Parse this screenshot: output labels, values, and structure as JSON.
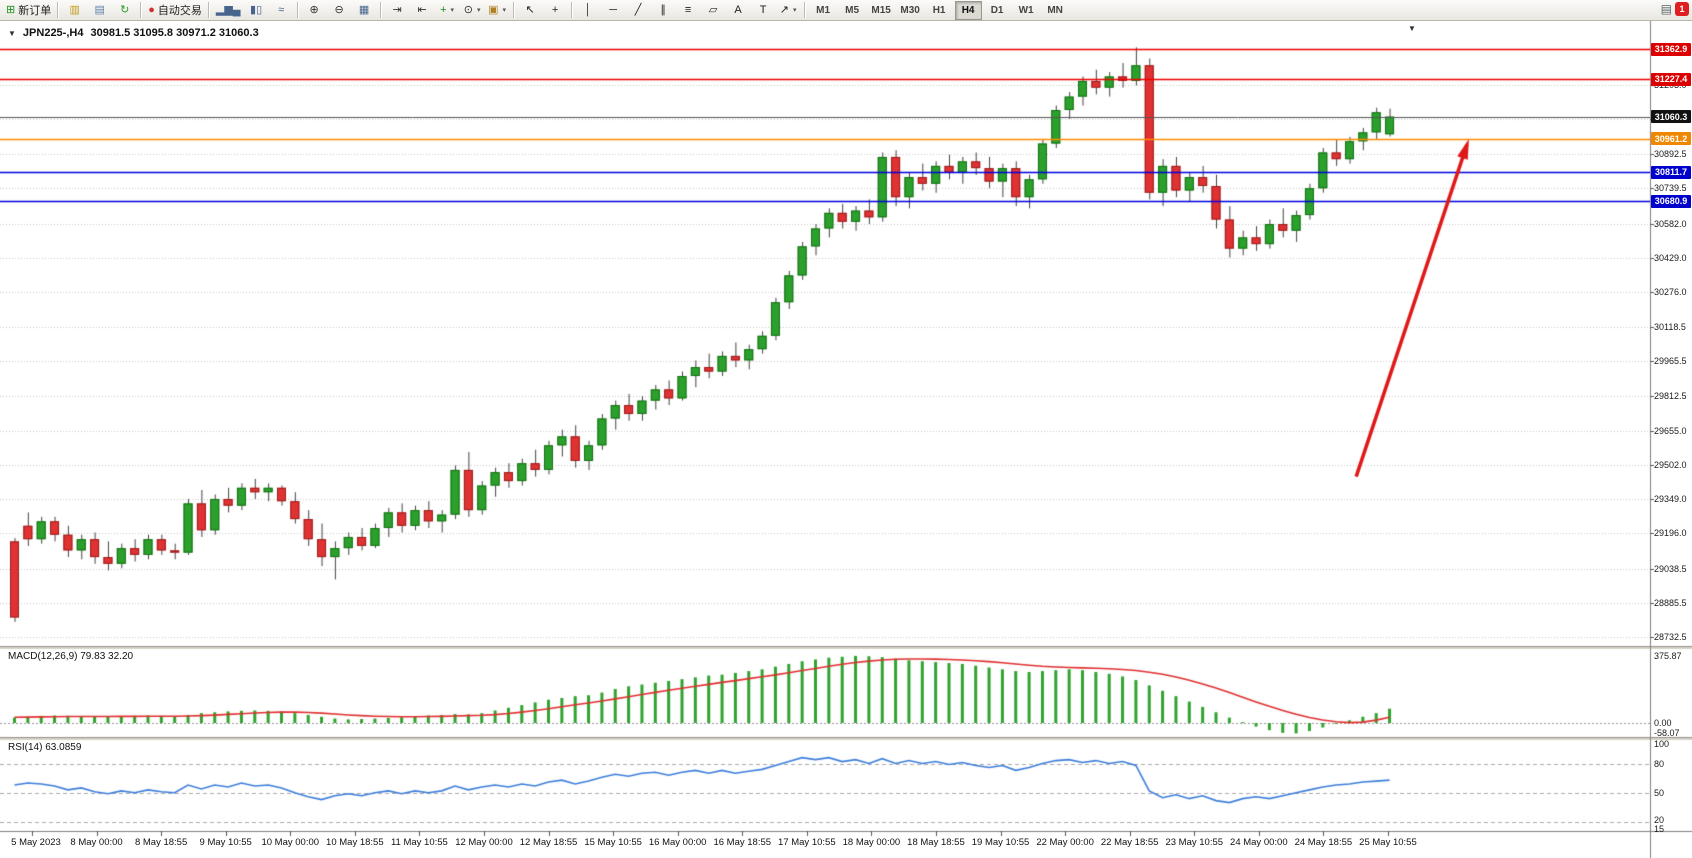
{
  "window": {
    "notification_count": "1"
  },
  "toolbar": {
    "buttons": [
      {
        "name": "new-order-button",
        "glyph": "⊞",
        "color": "#1f8f1f",
        "label": "新订单"
      },
      {
        "sep": true
      },
      {
        "name": "new-chart-button",
        "glyph": "▥",
        "color": "#c09a18"
      },
      {
        "name": "profiles-button",
        "glyph": "▤",
        "color": "#6080a8"
      },
      {
        "name": "refresh-button",
        "glyph": "↻",
        "color": "#2a9a2a"
      },
      {
        "sep": true
      },
      {
        "name": "autotrading-button",
        "glyph": "●",
        "color": "#d23030",
        "label": "自动交易"
      },
      {
        "sep": true
      },
      {
        "name": "bar-chart-button",
        "glyph": "▂▆▄",
        "color": "#46648c"
      },
      {
        "name": "candlestick-chart-button",
        "glyph": "▮▯",
        "color": "#46648c"
      },
      {
        "name": "line-chart-button",
        "glyph": "≈",
        "color": "#46648c"
      },
      {
        "sep": true
      },
      {
        "name": "zoom-in-button",
        "glyph": "⊕",
        "color": "#333333"
      },
      {
        "name": "zoom-out-button",
        "glyph": "⊖",
        "color": "#333333"
      },
      {
        "name": "tile-windows-button",
        "glyph": "▦",
        "color": "#46648c"
      },
      {
        "sep": true
      },
      {
        "name": "auto-scroll-button",
        "glyph": "⇥",
        "color": "#333333"
      },
      {
        "name": "chart-shift-button",
        "glyph": "⇤",
        "color": "#333333"
      },
      {
        "name": "indicators-button",
        "glyph": "+",
        "color": "#1f8f1f",
        "caret": true
      },
      {
        "name": "periods-button",
        "glyph": "⊙",
        "color": "#333333",
        "caret": true
      },
      {
        "name": "templates-button",
        "glyph": "▣",
        "color": "#b08020",
        "caret": true
      },
      {
        "sep": true
      },
      {
        "name": "cursor-button",
        "glyph": "↖",
        "color": "#222222"
      },
      {
        "name": "crosshair-button",
        "glyph": "+",
        "color": "#222222"
      },
      {
        "sep": true
      },
      {
        "name": "vertical-line-button",
        "glyph": "│",
        "color": "#222222"
      },
      {
        "name": "horizontal-line-button",
        "glyph": "─",
        "color": "#222222"
      },
      {
        "name": "trendline-button",
        "glyph": "╱",
        "color": "#222222"
      },
      {
        "name": "channel-button",
        "glyph": "∥",
        "color": "#222222"
      },
      {
        "name": "fibonacci-button",
        "glyph": "≡",
        "color": "#222222"
      },
      {
        "name": "shapes-button",
        "glyph": "▱",
        "color": "#222222"
      },
      {
        "name": "text-button",
        "glyph": "A",
        "color": "#222222"
      },
      {
        "name": "label-button",
        "glyph": "T",
        "color": "#222222"
      },
      {
        "name": "arrows-button",
        "glyph": "↗",
        "color": "#222222",
        "caret": true
      },
      {
        "sep": true
      }
    ],
    "timeframes": [
      {
        "label": "M1"
      },
      {
        "label": "M5"
      },
      {
        "label": "M15"
      },
      {
        "label": "M30"
      },
      {
        "label": "H1"
      },
      {
        "label": "H4",
        "active": true
      },
      {
        "label": "D1"
      },
      {
        "label": "W1"
      },
      {
        "label": "MN"
      }
    ]
  },
  "chart": {
    "title_symbol": "JPN225-,H4",
    "title_ohlc": "30981.5 31095.8 30971.2 31060.3"
  },
  "chart_data": {
    "type": "candlestick",
    "symbol": "JPN225-",
    "timeframe": "H4",
    "last_ohlc": {
      "open": 30981.5,
      "high": 31095.8,
      "low": 30971.2,
      "close": 31060.3
    },
    "price_axis": {
      "visible_min": 28692,
      "visible_max": 31488,
      "grid_labels": [
        "31203.0",
        "31050.0",
        "30892.5",
        "30739.5",
        "30582.0",
        "30429.0",
        "30276.0",
        "30118.5",
        "29965.5",
        "29812.5",
        "29655.0",
        "29502.0",
        "29349.0",
        "29196.0",
        "29038.5",
        "28885.5",
        "28732.5"
      ],
      "badges": [
        {
          "text": "31362.9",
          "price": 31362.9,
          "color": "#dd0000"
        },
        {
          "text": "31227.4",
          "price": 31227.4,
          "color": "#dd0000"
        },
        {
          "text": "31060.3",
          "price": 31060.3,
          "color": "#111111"
        },
        {
          "text": "30961.2",
          "price": 30961.2,
          "color": "#ef8800"
        },
        {
          "text": "30811.7",
          "price": 30811.7,
          "color": "#0000cc"
        },
        {
          "text": "30680.9",
          "price": 30680.9,
          "color": "#0000cc"
        }
      ]
    },
    "horizontal_lines": [
      {
        "price": 31362.9,
        "color": "#ee0000"
      },
      {
        "price": 31227.4,
        "color": "#ee0000"
      },
      {
        "price": 30961.2,
        "color": "#ff8a00"
      },
      {
        "price": 30811.7,
        "color": "#0000dd"
      },
      {
        "price": 30680.9,
        "color": "#0000dd"
      }
    ],
    "current_price": 31060.3,
    "candles": [
      [
        29160,
        29175,
        28800,
        28820
      ],
      [
        29230,
        29290,
        29140,
        29170
      ],
      [
        29170,
        29270,
        29150,
        29250
      ],
      [
        29250,
        29270,
        29160,
        29190
      ],
      [
        29190,
        29230,
        29090,
        29120
      ],
      [
        29120,
        29190,
        29080,
        29170
      ],
      [
        29170,
        29200,
        29060,
        29090
      ],
      [
        29090,
        29160,
        29030,
        29060
      ],
      [
        29060,
        29150,
        29040,
        29130
      ],
      [
        29130,
        29170,
        29070,
        29100
      ],
      [
        29100,
        29190,
        29080,
        29170
      ],
      [
        29170,
        29190,
        29100,
        29120
      ],
      [
        29120,
        29150,
        29080,
        29110
      ],
      [
        29110,
        29350,
        29100,
        29330
      ],
      [
        29330,
        29390,
        29180,
        29210
      ],
      [
        29210,
        29370,
        29190,
        29350
      ],
      [
        29350,
        29400,
        29290,
        29320
      ],
      [
        29320,
        29420,
        29300,
        29400
      ],
      [
        29400,
        29440,
        29350,
        29380
      ],
      [
        29380,
        29420,
        29340,
        29400
      ],
      [
        29400,
        29410,
        29320,
        29340
      ],
      [
        29340,
        29380,
        29240,
        29260
      ],
      [
        29260,
        29300,
        29140,
        29170
      ],
      [
        29170,
        29240,
        29050,
        29090
      ],
      [
        29090,
        29160,
        28990,
        29130
      ],
      [
        29130,
        29200,
        29100,
        29180
      ],
      [
        29180,
        29220,
        29120,
        29140
      ],
      [
        29140,
        29240,
        29130,
        29220
      ],
      [
        29220,
        29310,
        29180,
        29290
      ],
      [
        29290,
        29330,
        29200,
        29230
      ],
      [
        29230,
        29320,
        29210,
        29300
      ],
      [
        29300,
        29340,
        29220,
        29250
      ],
      [
        29250,
        29300,
        29200,
        29280
      ],
      [
        29280,
        29500,
        29260,
        29480
      ],
      [
        29480,
        29560,
        29270,
        29300
      ],
      [
        29300,
        29430,
        29280,
        29410
      ],
      [
        29410,
        29490,
        29360,
        29470
      ],
      [
        29470,
        29510,
        29400,
        29430
      ],
      [
        29430,
        29530,
        29410,
        29510
      ],
      [
        29510,
        29570,
        29450,
        29480
      ],
      [
        29480,
        29610,
        29460,
        29590
      ],
      [
        29590,
        29660,
        29540,
        29630
      ],
      [
        29630,
        29680,
        29490,
        29520
      ],
      [
        29520,
        29610,
        29480,
        29590
      ],
      [
        29590,
        29730,
        29570,
        29710
      ],
      [
        29710,
        29790,
        29660,
        29770
      ],
      [
        29770,
        29820,
        29700,
        29730
      ],
      [
        29730,
        29810,
        29700,
        29790
      ],
      [
        29790,
        29860,
        29750,
        29840
      ],
      [
        29840,
        29880,
        29770,
        29800
      ],
      [
        29800,
        29920,
        29790,
        29900
      ],
      [
        29900,
        29970,
        29850,
        29940
      ],
      [
        29940,
        30000,
        29890,
        29920
      ],
      [
        29920,
        30010,
        29900,
        29990
      ],
      [
        29990,
        30050,
        29940,
        29970
      ],
      [
        29970,
        30040,
        29930,
        30020
      ],
      [
        30020,
        30100,
        30000,
        30080
      ],
      [
        30080,
        30250,
        30060,
        30230
      ],
      [
        30230,
        30370,
        30200,
        30350
      ],
      [
        30350,
        30500,
        30330,
        30480
      ],
      [
        30480,
        30580,
        30440,
        30560
      ],
      [
        30560,
        30650,
        30520,
        30630
      ],
      [
        30630,
        30670,
        30560,
        30590
      ],
      [
        30590,
        30660,
        30550,
        30640
      ],
      [
        30640,
        30690,
        30580,
        30610
      ],
      [
        30610,
        30900,
        30590,
        30880
      ],
      [
        30880,
        30910,
        30660,
        30700
      ],
      [
        30700,
        30810,
        30650,
        30790
      ],
      [
        30790,
        30850,
        30730,
        30760
      ],
      [
        30760,
        30860,
        30720,
        30840
      ],
      [
        30840,
        30890,
        30780,
        30810
      ],
      [
        30810,
        30880,
        30760,
        30860
      ],
      [
        30860,
        30900,
        30800,
        30830
      ],
      [
        30830,
        30880,
        30740,
        30770
      ],
      [
        30770,
        30850,
        30700,
        30830
      ],
      [
        30830,
        30860,
        30660,
        30700
      ],
      [
        30700,
        30800,
        30650,
        30780
      ],
      [
        30780,
        30960,
        30760,
        30940
      ],
      [
        30940,
        31110,
        30920,
        31090
      ],
      [
        31090,
        31170,
        31050,
        31150
      ],
      [
        31150,
        31240,
        31110,
        31220
      ],
      [
        31220,
        31270,
        31160,
        31190
      ],
      [
        31190,
        31260,
        31150,
        31240
      ],
      [
        31240,
        31300,
        31190,
        31220
      ],
      [
        31220,
        31370,
        31200,
        31290
      ],
      [
        31290,
        31320,
        30690,
        30720
      ],
      [
        30720,
        30870,
        30660,
        30840
      ],
      [
        30840,
        30880,
        30700,
        30730
      ],
      [
        30730,
        30810,
        30680,
        30790
      ],
      [
        30790,
        30840,
        30720,
        30750
      ],
      [
        30750,
        30800,
        30560,
        30600
      ],
      [
        30600,
        30660,
        30430,
        30470
      ],
      [
        30470,
        30550,
        30440,
        30520
      ],
      [
        30520,
        30570,
        30460,
        30490
      ],
      [
        30490,
        30600,
        30470,
        30580
      ],
      [
        30580,
        30650,
        30520,
        30550
      ],
      [
        30550,
        30640,
        30500,
        30620
      ],
      [
        30620,
        30760,
        30600,
        30740
      ],
      [
        30740,
        30920,
        30720,
        30900
      ],
      [
        30900,
        30960,
        30840,
        30870
      ],
      [
        30870,
        30970,
        30850,
        30950
      ],
      [
        30950,
        31010,
        30910,
        30990
      ],
      [
        30990,
        31100,
        30960,
        31080
      ],
      [
        30981.5,
        31095.8,
        30971.2,
        31060.3
      ]
    ],
    "time_labels": [
      "5 May 2023",
      "8 May 00:00",
      "8 May 18:55",
      "9 May 10:55",
      "10 May 00:00",
      "10 May 18:55",
      "11 May 10:55",
      "12 May 00:00",
      "12 May 18:55",
      "15 May 10:55",
      "16 May 00:00",
      "16 May 18:55",
      "17 May 10:55",
      "18 May 00:00",
      "18 May 18:55",
      "19 May 10:55",
      "22 May 00:00",
      "22 May 18:55",
      "23 May 10:55",
      "24 May 00:00",
      "24 May 18:55",
      "25 May 10:55"
    ],
    "macd": {
      "label": "MACD(12,26,9) 79.83 32.20",
      "axis_labels": [
        "375.87",
        "0.00",
        "-58.07"
      ],
      "histogram": [
        30,
        35,
        40,
        42,
        40,
        38,
        35,
        35,
        38,
        40,
        42,
        40,
        38,
        45,
        55,
        60,
        65,
        68,
        70,
        68,
        65,
        55,
        45,
        35,
        25,
        20,
        22,
        25,
        28,
        32,
        38,
        42,
        45,
        50,
        48,
        55,
        70,
        85,
        100,
        115,
        130,
        140,
        150,
        155,
        170,
        190,
        205,
        215,
        225,
        235,
        245,
        255,
        265,
        270,
        280,
        290,
        300,
        315,
        330,
        345,
        355,
        365,
        370,
        375,
        373,
        368,
        360,
        350,
        345,
        340,
        335,
        330,
        320,
        310,
        300,
        290,
        285,
        290,
        295,
        300,
        295,
        285,
        275,
        260,
        240,
        210,
        180,
        150,
        120,
        90,
        60,
        30,
        5,
        -20,
        -40,
        -55,
        -58,
        -45,
        -25,
        -5,
        15,
        35,
        55,
        80
      ],
      "signal": [
        32,
        33,
        34,
        35,
        36,
        36,
        36,
        36,
        37,
        37,
        38,
        38,
        38,
        39,
        41,
        44,
        48,
        52,
        56,
        59,
        61,
        61,
        59,
        55,
        50,
        45,
        41,
        38,
        36,
        35,
        35,
        36,
        37,
        39,
        41,
        43,
        47,
        53,
        61,
        70,
        80,
        91,
        102,
        112,
        123,
        135,
        147,
        159,
        171,
        183,
        194,
        205,
        216,
        227,
        237,
        248,
        258,
        269,
        281,
        293,
        305,
        317,
        328,
        338,
        346,
        352,
        356,
        358,
        358,
        357,
        355,
        352,
        348,
        343,
        337,
        330,
        323,
        317,
        313,
        310,
        308,
        306,
        303,
        299,
        293,
        284,
        272,
        257,
        239,
        218,
        195,
        170,
        144,
        118,
        93,
        70,
        49,
        31,
        17,
        7,
        2,
        5,
        16,
        32
      ]
    },
    "rsi": {
      "label": "RSI(14) 63.0859",
      "axis_labels": [
        "100",
        "80",
        "50",
        "20",
        "15"
      ],
      "levels": [
        80,
        50,
        20
      ],
      "values": [
        58,
        60,
        59,
        57,
        53,
        55,
        51,
        49,
        52,
        50,
        53,
        51,
        50,
        58,
        54,
        58,
        56,
        60,
        57,
        58,
        55,
        50,
        46,
        43,
        47,
        49,
        47,
        50,
        52,
        49,
        52,
        50,
        52,
        57,
        53,
        56,
        58,
        56,
        59,
        57,
        61,
        63,
        59,
        62,
        66,
        69,
        67,
        70,
        71,
        68,
        71,
        73,
        70,
        73,
        70,
        72,
        74,
        78,
        82,
        86,
        84,
        86,
        82,
        84,
        80,
        85,
        80,
        83,
        80,
        82,
        79,
        81,
        78,
        76,
        78,
        73,
        76,
        80,
        83,
        84,
        81,
        83,
        80,
        82,
        78,
        52,
        45,
        48,
        44,
        47,
        42,
        40,
        44,
        46,
        44,
        47,
        50,
        53,
        56,
        58,
        59,
        61,
        62,
        63
      ]
    },
    "trend_arrow": {
      "from_bar": 100.5,
      "from_price": 29450,
      "to_bar": 108.8,
      "to_price": 30935,
      "color": "#e01818"
    }
  }
}
